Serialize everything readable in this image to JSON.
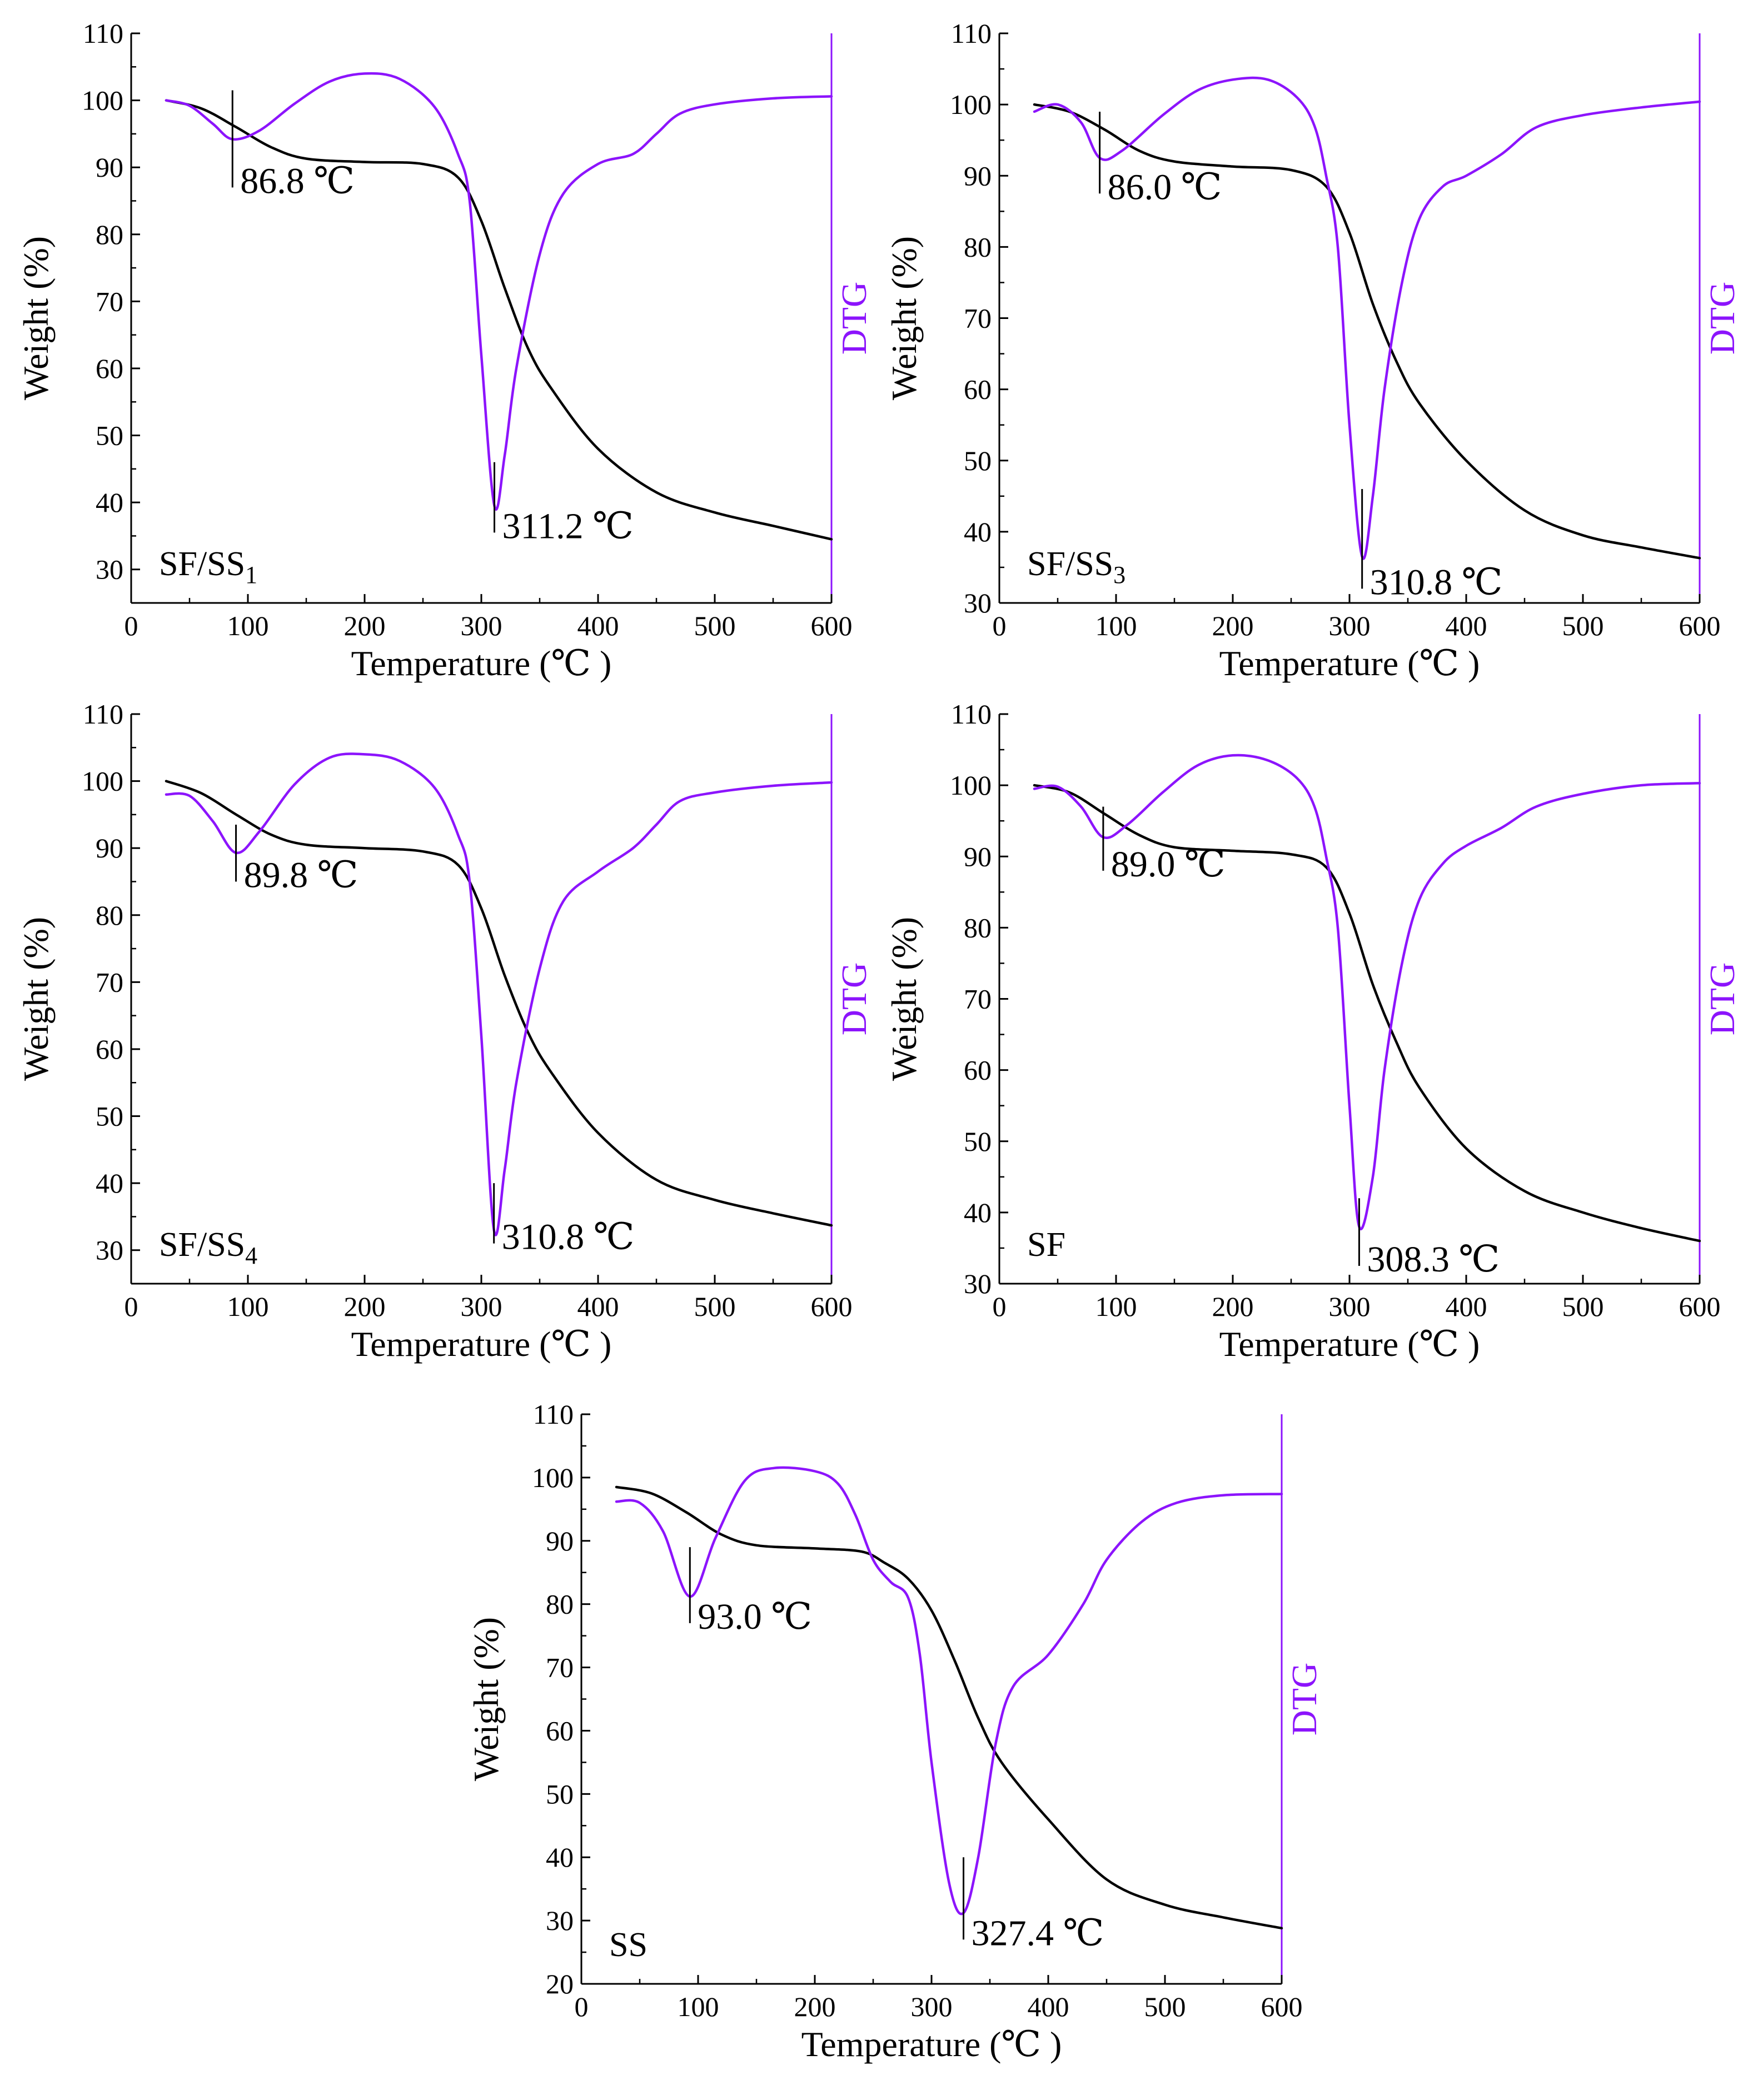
{
  "colors": {
    "weight_line": "#000000",
    "dtg_line": "#8c14fc",
    "axes": "#000000"
  },
  "chart_data": [
    {
      "type": "line",
      "sample_label": {
        "main": "SF/SS",
        "sub": "1"
      },
      "xlabel": "Temperature (℃ )",
      "ylabel": "Weight (%)",
      "y2label": "DTG",
      "xlim": [
        0,
        600
      ],
      "ylim": [
        25,
        110
      ],
      "xticks": [
        0,
        100,
        200,
        300,
        400,
        500,
        600
      ],
      "yticks": [
        30,
        40,
        50,
        60,
        70,
        80,
        90,
        100,
        110
      ],
      "series": [
        {
          "name": "Weight",
          "color": "#000000",
          "x": [
            30,
            60,
            90,
            120,
            150,
            200,
            250,
            280,
            300,
            320,
            340,
            360,
            400,
            450,
            500,
            550,
            600
          ],
          "y": [
            100,
            98.8,
            96,
            93,
            91.3,
            90.8,
            90.5,
            88.5,
            82,
            72,
            63,
            57,
            48,
            41.5,
            38.5,
            36.5,
            34.5
          ]
        },
        {
          "name": "DTG",
          "color": "#8c14fc",
          "x": [
            30,
            50,
            70,
            86.8,
            110,
            140,
            170,
            200,
            230,
            260,
            280,
            290,
            300,
            311.2,
            320,
            330,
            350,
            370,
            400,
            430,
            450,
            470,
            500,
            550,
            600
          ],
          "y": [
            100,
            99.2,
            96.5,
            94.2,
            95.5,
            99.5,
            102.8,
            104,
            103.2,
            99,
            92,
            85,
            62,
            39.5,
            47,
            60,
            77,
            86,
            90.5,
            92,
            95,
            98,
            99.4,
            100.3,
            100.6
          ]
        }
      ],
      "annotations": [
        {
          "text": "86.8 ℃",
          "x": 86.8,
          "y1": 101.5,
          "y2": 87
        },
        {
          "text": "311.2 ℃",
          "x": 311.2,
          "y1": 46,
          "y2": 35.5
        }
      ]
    },
    {
      "type": "line",
      "sample_label": {
        "main": "SF/SS",
        "sub": "3"
      },
      "xlabel": "Temperature (℃ )",
      "ylabel": "Weight (%)",
      "y2label": "DTG",
      "xlim": [
        0,
        600
      ],
      "ylim": [
        30,
        110
      ],
      "xticks": [
        0,
        100,
        200,
        300,
        400,
        500,
        600
      ],
      "yticks": [
        30,
        40,
        50,
        60,
        70,
        80,
        90,
        100,
        110
      ],
      "series": [
        {
          "name": "Weight",
          "color": "#000000",
          "x": [
            30,
            60,
            90,
            120,
            150,
            200,
            250,
            280,
            300,
            320,
            340,
            360,
            400,
            450,
            500,
            550,
            600
          ],
          "y": [
            100,
            99,
            96.5,
            93.5,
            92,
            91.3,
            90.8,
            88.5,
            82,
            72,
            64,
            58,
            50,
            43,
            39.5,
            37.8,
            36.3
          ]
        },
        {
          "name": "DTG",
          "color": "#8c14fc",
          "x": [
            30,
            50,
            70,
            86,
            105,
            140,
            170,
            200,
            230,
            255,
            270,
            280,
            290,
            300,
            310.8,
            320,
            330,
            345,
            360,
            380,
            400,
            430,
            460,
            500,
            550,
            600
          ],
          "y": [
            99,
            100,
            97.5,
            92.5,
            93.5,
            98.5,
            102,
            103.5,
            103.5,
            101,
            97,
            90,
            80,
            55,
            36.5,
            45,
            60,
            75,
            84,
            88.5,
            90,
            93,
            96.8,
            98.5,
            99.6,
            100.4
          ]
        }
      ],
      "annotations": [
        {
          "text": "86.0 ℃",
          "x": 86,
          "y1": 99,
          "y2": 87.5
        },
        {
          "text": "310.8 ℃",
          "x": 310.8,
          "y1": 46,
          "y2": 32
        }
      ]
    },
    {
      "type": "line",
      "sample_label": {
        "main": "SF/SS",
        "sub": "4"
      },
      "xlabel": "Temperature (℃ )",
      "ylabel": "Weight (%)",
      "y2label": "DTG",
      "xlim": [
        0,
        600
      ],
      "ylim": [
        25,
        110
      ],
      "xticks": [
        0,
        100,
        200,
        300,
        400,
        500,
        600
      ],
      "yticks": [
        30,
        40,
        50,
        60,
        70,
        80,
        90,
        100,
        110
      ],
      "series": [
        {
          "name": "Weight",
          "color": "#000000",
          "x": [
            30,
            60,
            90,
            120,
            150,
            200,
            250,
            280,
            300,
            320,
            340,
            360,
            400,
            450,
            500,
            550,
            600
          ],
          "y": [
            100,
            98.2,
            95,
            92,
            90.5,
            90,
            89.5,
            87.5,
            81,
            71,
            62.5,
            56.5,
            47.5,
            40.5,
            37.5,
            35.5,
            33.7
          ]
        },
        {
          "name": "DTG",
          "color": "#8c14fc",
          "x": [
            30,
            50,
            70,
            89.8,
            110,
            140,
            170,
            200,
            230,
            260,
            280,
            290,
            300,
            310.8,
            320,
            330,
            350,
            370,
            400,
            430,
            450,
            470,
            500,
            550,
            600
          ],
          "y": [
            98,
            97.8,
            94,
            89.3,
            92.5,
            99.5,
            103.5,
            104,
            103,
            99,
            92,
            85,
            62,
            33,
            42,
            55,
            72,
            82,
            86.5,
            90,
            93.5,
            97,
            98.3,
            99.3,
            99.8
          ]
        }
      ],
      "annotations": [
        {
          "text": "89.8 ℃",
          "x": 89.8,
          "y1": 93.5,
          "y2": 85
        },
        {
          "text": "310.8 ℃",
          "x": 310.8,
          "y1": 40,
          "y2": 31
        }
      ]
    },
    {
      "type": "line",
      "sample_label": {
        "main": "SF",
        "sub": ""
      },
      "xlabel": "Temperature (℃ )",
      "ylabel": "Weight (%)",
      "y2label": "DTG",
      "xlim": [
        0,
        600
      ],
      "ylim": [
        30,
        110
      ],
      "xticks": [
        0,
        100,
        200,
        300,
        400,
        500,
        600
      ],
      "yticks": [
        30,
        40,
        50,
        60,
        70,
        80,
        90,
        100,
        110
      ],
      "series": [
        {
          "name": "Weight",
          "color": "#000000",
          "x": [
            30,
            60,
            90,
            120,
            150,
            200,
            250,
            280,
            300,
            320,
            340,
            360,
            400,
            450,
            500,
            550,
            600
          ],
          "y": [
            100,
            99,
            96,
            93,
            91.3,
            90.8,
            90.3,
            88.5,
            82,
            72,
            64,
            57.5,
            49,
            43,
            40,
            37.8,
            36
          ]
        },
        {
          "name": "DTG",
          "color": "#8c14fc",
          "x": [
            30,
            50,
            70,
            89,
            110,
            140,
            170,
            200,
            230,
            255,
            270,
            280,
            290,
            300,
            308.3,
            320,
            330,
            345,
            360,
            380,
            400,
            430,
            460,
            500,
            550,
            600
          ],
          "y": [
            99.5,
            99.8,
            97,
            92.7,
            94.5,
            99,
            102.8,
            104.2,
            103.5,
            101,
            97,
            90,
            80,
            55,
            38,
            45,
            60,
            75,
            84,
            89,
            91.5,
            94,
            97,
            98.8,
            100,
            100.3
          ]
        }
      ],
      "annotations": [
        {
          "text": "89.0 ℃",
          "x": 89,
          "y1": 97,
          "y2": 88
        },
        {
          "text": "308.3 ℃",
          "x": 308.3,
          "y1": 42,
          "y2": 32.5
        }
      ]
    },
    {
      "type": "line",
      "sample_label": {
        "main": "SS",
        "sub": ""
      },
      "xlabel": "Temperature (℃ )",
      "ylabel": "Weight (%)",
      "y2label": "DTG",
      "xlim": [
        0,
        600
      ],
      "ylim": [
        20,
        110
      ],
      "xticks": [
        0,
        100,
        200,
        300,
        400,
        500,
        600
      ],
      "yticks": [
        20,
        30,
        40,
        50,
        60,
        70,
        80,
        90,
        100,
        110
      ],
      "series": [
        {
          "name": "Weight",
          "color": "#000000",
          "x": [
            30,
            60,
            90,
            120,
            150,
            200,
            240,
            260,
            280,
            300,
            320,
            340,
            360,
            400,
            450,
            500,
            550,
            600
          ],
          "y": [
            98.5,
            97.5,
            94.5,
            91,
            89.3,
            88.8,
            88.3,
            86.5,
            84,
            79,
            71,
            62,
            55,
            46,
            36.5,
            32.5,
            30.5,
            28.8
          ]
        },
        {
          "name": "DTG",
          "color": "#8c14fc",
          "x": [
            30,
            50,
            70,
            93,
            115,
            140,
            165,
            200,
            220,
            235,
            250,
            265,
            280,
            290,
            300,
            315,
            327.4,
            340,
            355,
            370,
            400,
            430,
            450,
            480,
            510,
            550,
            600
          ],
          "y": [
            96.2,
            96,
            91.5,
            81.2,
            90.5,
            99.5,
            101.5,
            101,
            99,
            94,
            87,
            83.5,
            81,
            72,
            55,
            36,
            31.2,
            40,
            58,
            67,
            72,
            80,
            87,
            93,
            96,
            97.2,
            97.4
          ]
        }
      ],
      "annotations": [
        {
          "text": "93.0 ℃",
          "x": 93,
          "y1": 89,
          "y2": 77
        },
        {
          "text": "327.4 ℃",
          "x": 327.4,
          "y1": 40,
          "y2": 27
        }
      ]
    }
  ]
}
